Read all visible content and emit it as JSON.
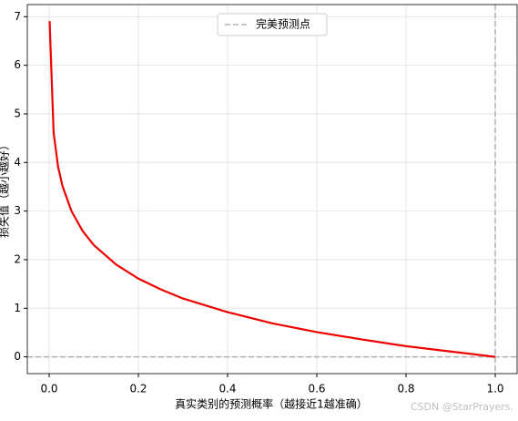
{
  "chart_data": {
    "type": "line",
    "xlabel": "真实类别的预测概率（越接近1越准确）",
    "ylabel": "损失值（越小越好）",
    "series": [
      {
        "color": "#ee0000",
        "x": [
          0.001,
          0.01,
          0.02,
          0.03,
          0.05,
          0.075,
          0.1,
          0.15,
          0.2,
          0.25,
          0.3,
          0.4,
          0.5,
          0.6,
          0.7,
          0.8,
          0.9,
          1.0
        ],
        "values": [
          6.91,
          4.61,
          3.91,
          3.51,
          3.0,
          2.59,
          2.3,
          1.9,
          1.61,
          1.39,
          1.2,
          0.92,
          0.69,
          0.51,
          0.36,
          0.22,
          0.11,
          0
        ]
      }
    ],
    "reference": {
      "name": "完美预测点",
      "color": "#b0b0b0",
      "y": 0,
      "x": 1
    },
    "xlim": [
      -0.049,
      1.049
    ],
    "ylim": [
      -0.345,
      7.25
    ],
    "xticks": [
      {
        "value": 0,
        "label": "0.0"
      },
      0.2,
      0.4,
      0.6,
      0.8,
      {
        "value": 1,
        "label": "1.0"
      }
    ],
    "yticks": [
      0,
      1,
      2,
      3,
      4,
      5,
      6,
      7
    ],
    "grid": true,
    "legend": "upper center",
    "watermark": "CSDN @StarPrayers."
  }
}
